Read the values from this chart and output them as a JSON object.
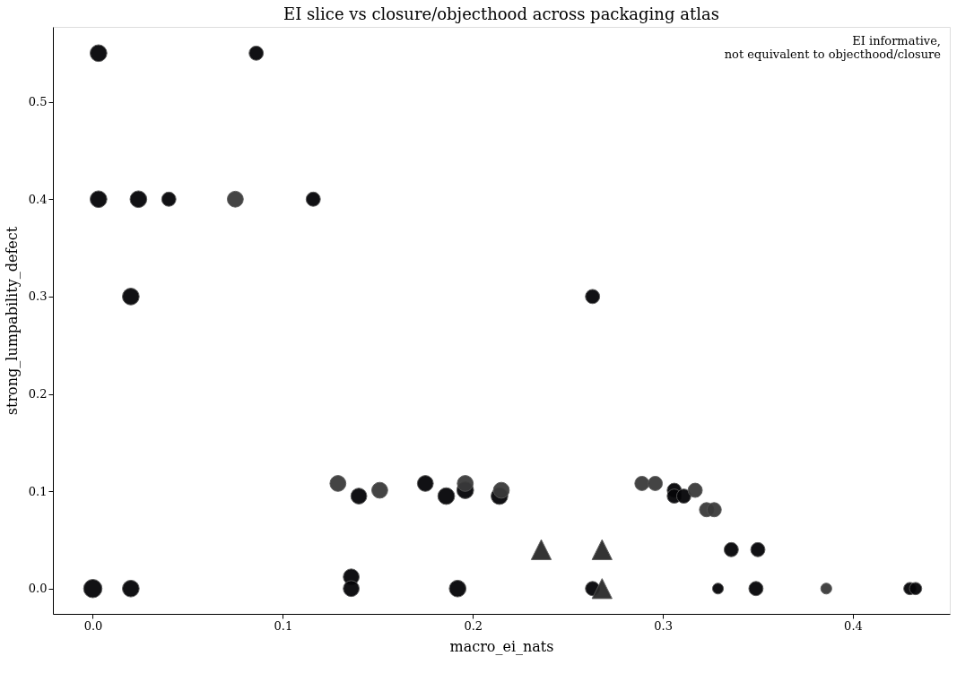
{
  "chart_data": {
    "type": "bubble",
    "title": "EI slice vs closure/objecthood across packaging atlas",
    "xlabel": "macro_ei_nats",
    "ylabel": "strong_lumpability_defect",
    "annotations": [
      "EI informative,\nnot equivalent to objecthood/closure"
    ],
    "xlim": [
      -0.021,
      0.451
    ],
    "ylim": [
      -0.026,
      0.577
    ],
    "xticks": [
      {
        "value": 0,
        "label": "0.0"
      },
      0.1,
      0.2,
      0.3,
      0.4
    ],
    "yticks": [
      {
        "value": 0,
        "label": "0.0"
      },
      0.1,
      0.2,
      0.3,
      0.4,
      0.5
    ],
    "grid": false,
    "series": [
      {
        "color": "#050508",
        "marker": "circle",
        "x": [
          0.003,
          0.086,
          0.003,
          0.024,
          0.04,
          0.116,
          0.02,
          0.263,
          0.0,
          0.02,
          0.14,
          0.136,
          0.136,
          0.175,
          0.186,
          0.196,
          0.214,
          0.192,
          0.263,
          0.306,
          0.306,
          0.311,
          0.336,
          0.35,
          0.329,
          0.349,
          0.43,
          0.433
        ],
        "values": [
          0.55,
          0.55,
          0.4,
          0.4,
          0.4,
          0.4,
          0.3,
          0.3,
          0.0,
          0.0,
          0.095,
          0.012,
          0.0,
          0.108,
          0.095,
          0.101,
          0.095,
          0.0,
          0.0,
          0.101,
          0.095,
          0.095,
          0.04,
          0.04,
          0.0,
          0.0,
          0.0,
          0.0
        ],
        "sizes": [
          0.83,
          0.6,
          0.83,
          0.83,
          0.6,
          0.6,
          0.83,
          0.6,
          1.0,
          0.83,
          0.75,
          0.75,
          0.75,
          0.75,
          0.83,
          0.83,
          0.83,
          0.83,
          0.6,
          0.6,
          0.6,
          0.6,
          0.6,
          0.6,
          0.35,
          0.6,
          0.45,
          0.45
        ]
      },
      {
        "color": "#3a3a3a",
        "marker": "circle",
        "x": [
          0.129,
          0.151,
          0.196,
          0.215,
          0.075,
          0.289,
          0.296,
          0.317,
          0.323,
          0.327,
          0.386
        ],
        "values": [
          0.108,
          0.101,
          0.108,
          0.101,
          0.4,
          0.108,
          0.108,
          0.101,
          0.081,
          0.081,
          0.0
        ],
        "sizes": [
          0.75,
          0.75,
          0.75,
          0.75,
          0.75,
          0.6,
          0.6,
          0.6,
          0.6,
          0.6,
          0.35
        ]
      },
      {
        "color": "#2a2a2a",
        "marker": "triangle",
        "x": [
          0.236,
          0.268,
          0.268
        ],
        "values": [
          0.04,
          0.04,
          0.0
        ],
        "sizes": [
          0.75,
          0.75,
          0.75
        ]
      }
    ]
  }
}
